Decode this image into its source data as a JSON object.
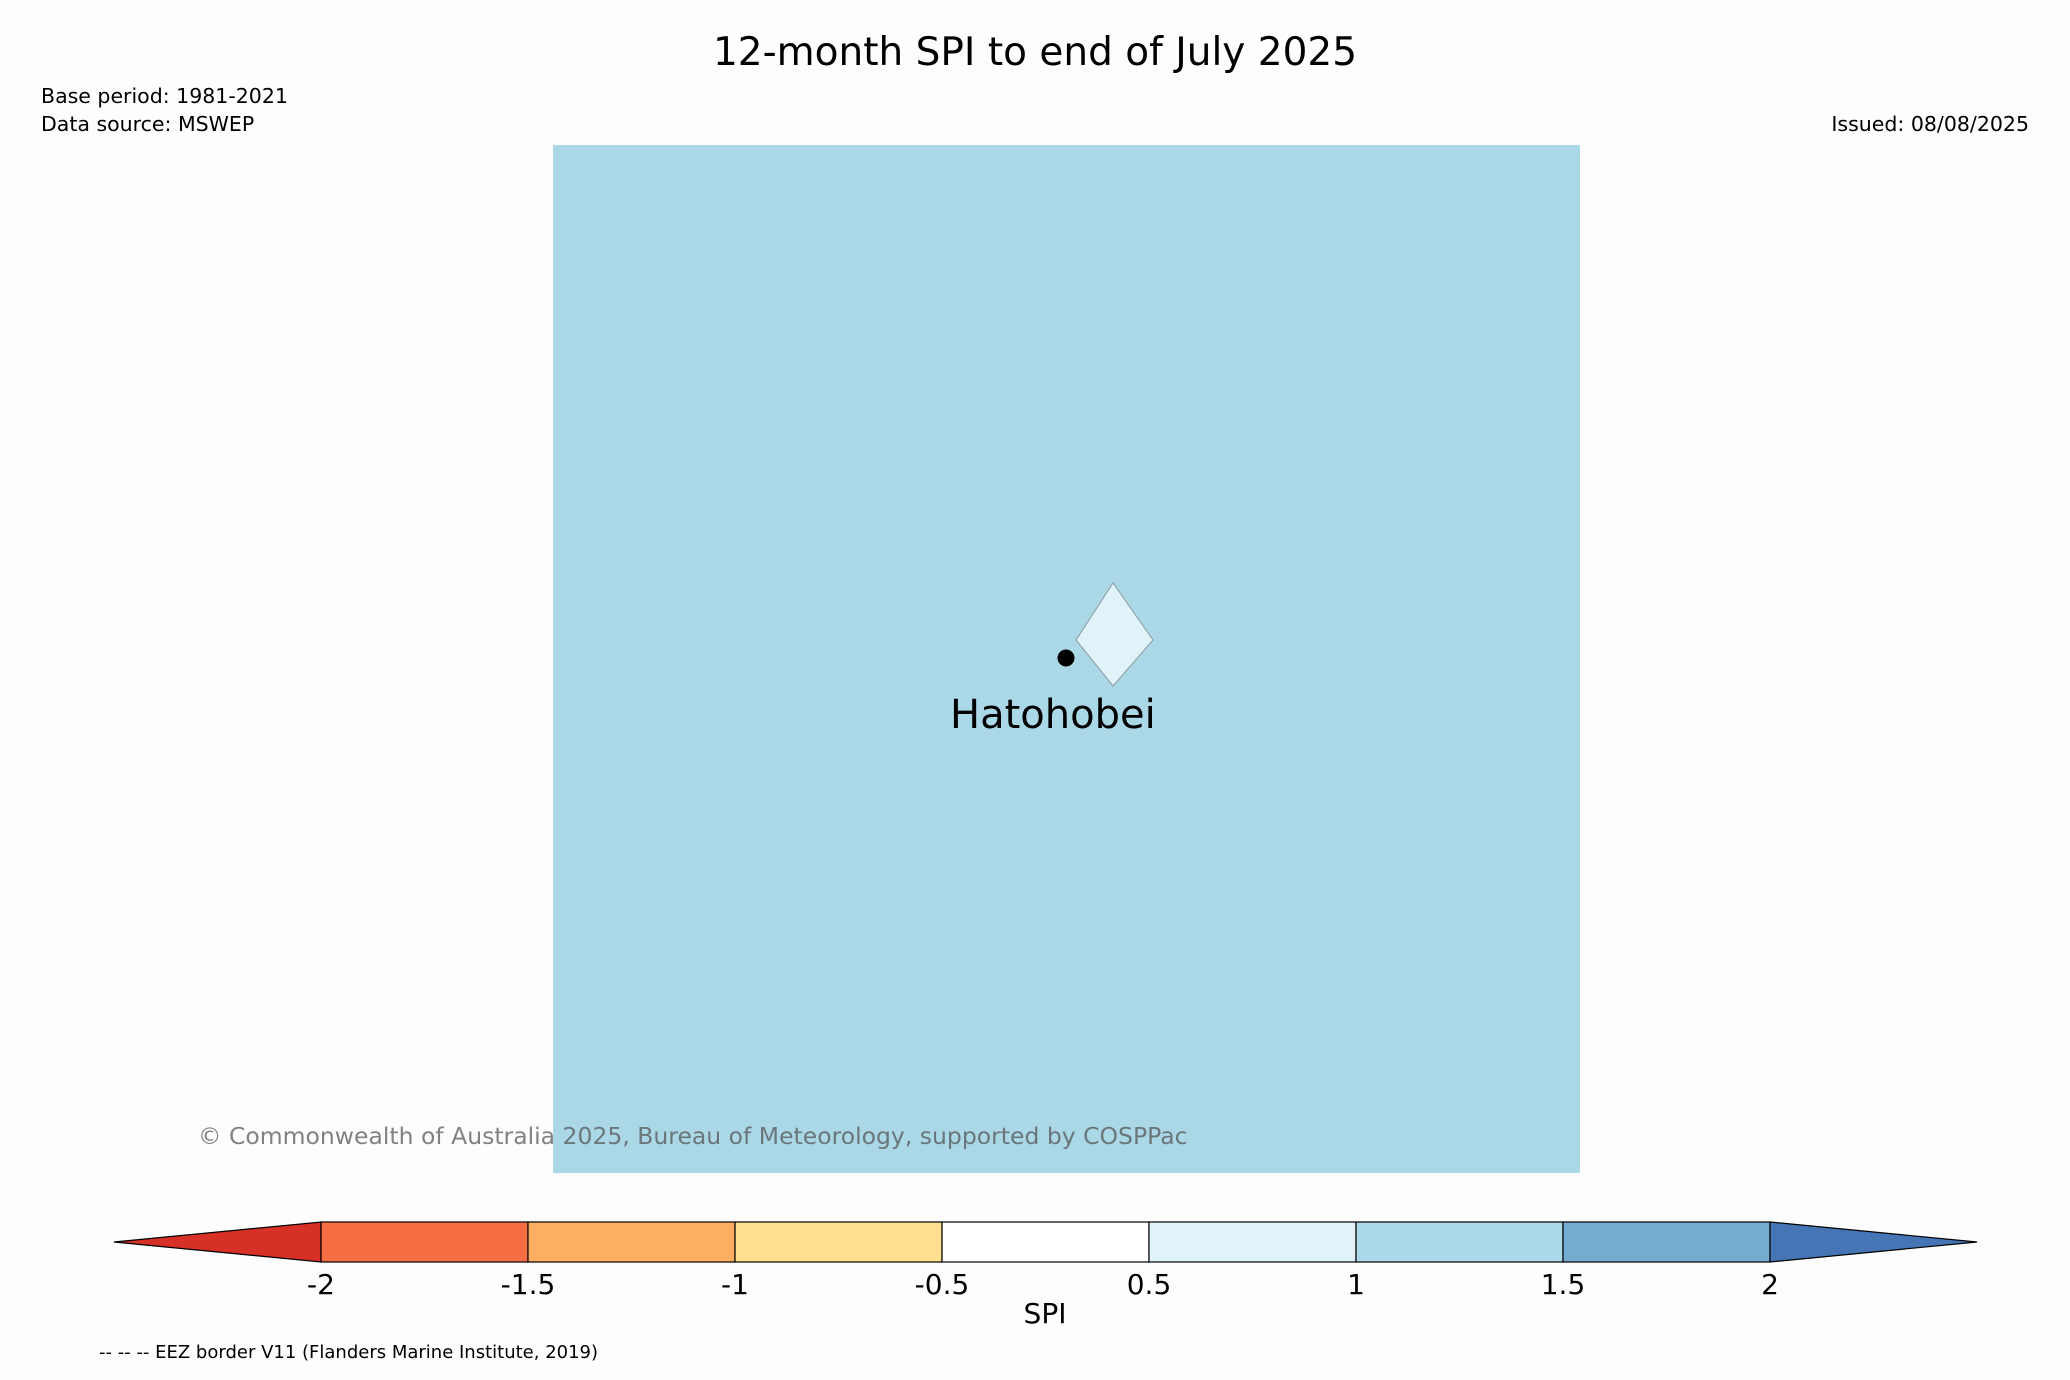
{
  "title": "12-month SPI to end of July 2025",
  "base_period": "Base period: 1981-2021",
  "data_source": "Data source: MSWEP",
  "issued": "Issued: 08/08/2025",
  "map": {
    "background_color": "#abd8e7",
    "island_color": "#e0f3f8",
    "place_name": "Hatohobei"
  },
  "copyright": "© Commonwealth of Australia 2025, Bureau of Meteorology, supported by COSPPac",
  "colorbar": {
    "label": "SPI",
    "ticks": [
      "-2",
      "-1.5",
      "-1",
      "-0.5",
      "0.5",
      "1",
      "1.5",
      "2"
    ],
    "colors": [
      "#d73027",
      "#f46d43",
      "#fdae61",
      "#fee090",
      "#ffffff",
      "#e0f3f8",
      "#abd9e9",
      "#74add1",
      "#4575b4"
    ]
  },
  "eez_note": "-- -- -- EEZ border V11 (Flanders Marine Institute, 2019)"
}
